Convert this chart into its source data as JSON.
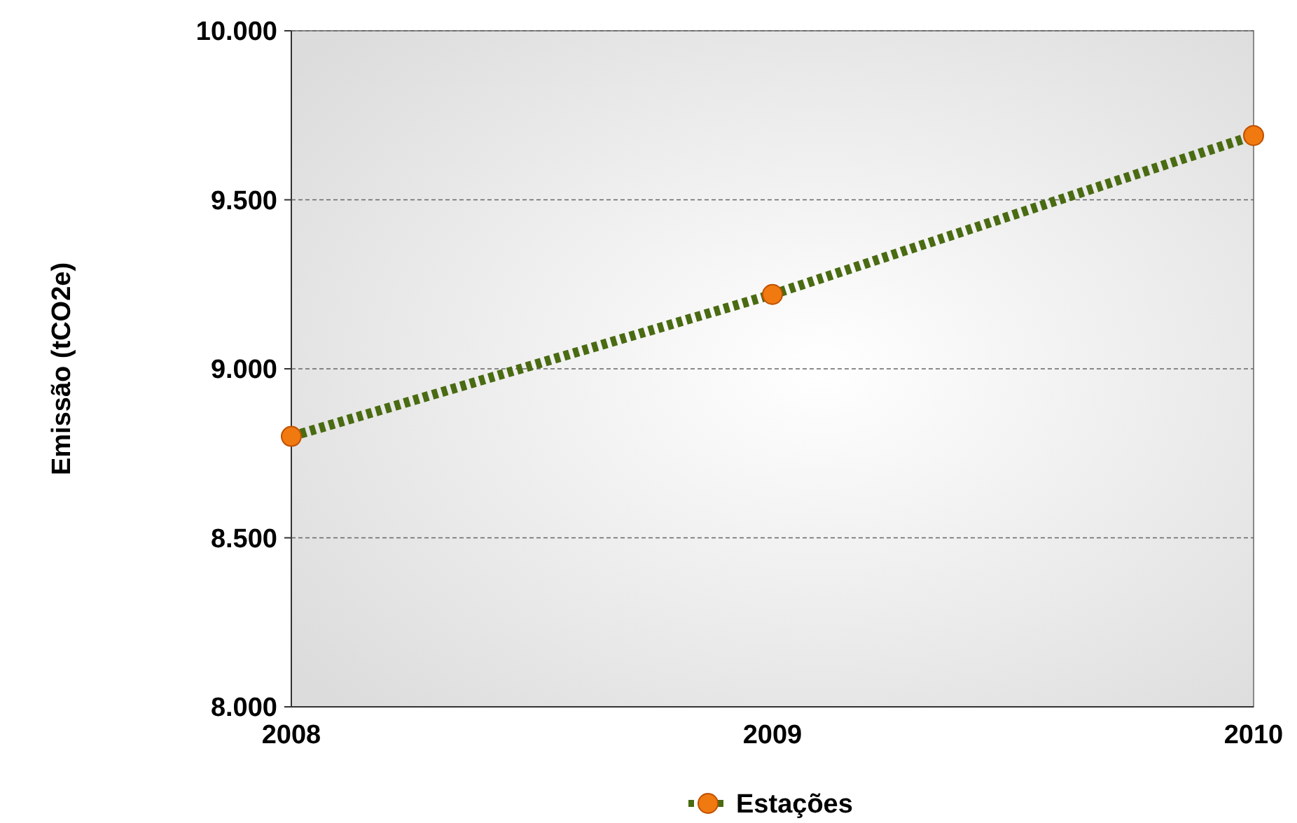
{
  "chart_data": {
    "type": "line",
    "ylabel": "Emissão (tCO2e)",
    "categories": [
      "2008",
      "2009",
      "2010"
    ],
    "series": [
      {
        "name": "Estações",
        "color": "#4a6b12",
        "values": [
          8800,
          9220,
          9690
        ]
      }
    ],
    "ylim": [
      8000,
      10000
    ],
    "yticks": [
      {
        "value": 8000,
        "label": "8.000"
      },
      {
        "value": 8500,
        "label": "8.500"
      },
      {
        "value": 9000,
        "label": "9.000"
      },
      {
        "value": 9500,
        "label": "9.500"
      },
      {
        "value": 10000,
        "label": "10.000"
      }
    ],
    "grid": "y",
    "legend": "bottom",
    "marker": "circle",
    "line_style": "dotted"
  }
}
